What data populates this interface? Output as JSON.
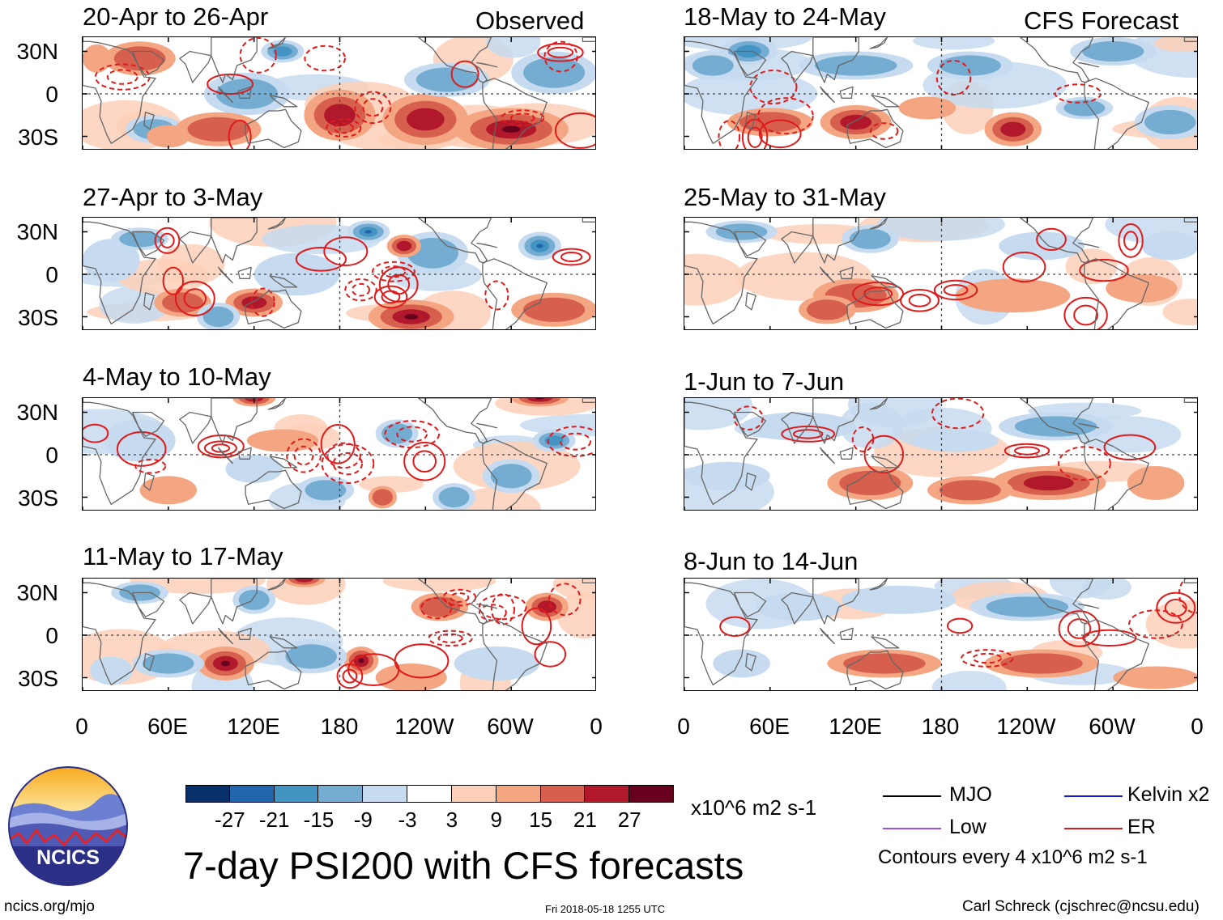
{
  "chart_data": {
    "type": "heatmap",
    "title": "7-day PSI200 with CFS forecasts",
    "variable": "PSI200",
    "units": "x10^6 m2 s-1",
    "columns": [
      {
        "header": "Observed",
        "panels": [
          "20-Apr to 26-Apr",
          "27-Apr to 3-May",
          "4-May to 10-May",
          "11-May to 17-May"
        ]
      },
      {
        "header": "CFS Forecast",
        "panels": [
          "18-May to 24-May",
          "25-May to 31-May",
          "1-Jun to 7-Jun",
          "8-Jun to 14-Jun"
        ]
      }
    ],
    "lat_ticks": [
      "30N",
      "0",
      "30S"
    ],
    "lon_ticks": [
      "0",
      "60E",
      "120E",
      "180",
      "120W",
      "60W",
      "0"
    ],
    "xlim": [
      0,
      360
    ],
    "ylim": [
      -40,
      40
    ],
    "colorbar": {
      "ticks": [
        "-27",
        "-21",
        "-15",
        "-9",
        "-3",
        "3",
        "9",
        "15",
        "21",
        "27"
      ],
      "colors": [
        "#08306b",
        "#2166ac",
        "#4393c3",
        "#74add1",
        "#c6dbef",
        "#ffffff",
        "#fdd0b9",
        "#f4a582",
        "#d6604d",
        "#b2182b",
        "#67001f"
      ]
    },
    "contour_legend": [
      {
        "label": "MJO",
        "color": "#000000"
      },
      {
        "label": "Kelvin x2",
        "color": "#1a1ad6"
      },
      {
        "label": "Low",
        "color": "#a050e0"
      },
      {
        "label": "ER",
        "color": "#e01a1a"
      }
    ],
    "contour_note": "Contours every 4 x10^6 m2 s-1"
  },
  "logo": {
    "text": "NCICS"
  },
  "footer": {
    "url": "ncics.org/mjo",
    "timestamp": "Fri 2018-05-18 1255 UTC",
    "credit": "Carl Schreck (cjschrec@ncsu.edu)"
  }
}
